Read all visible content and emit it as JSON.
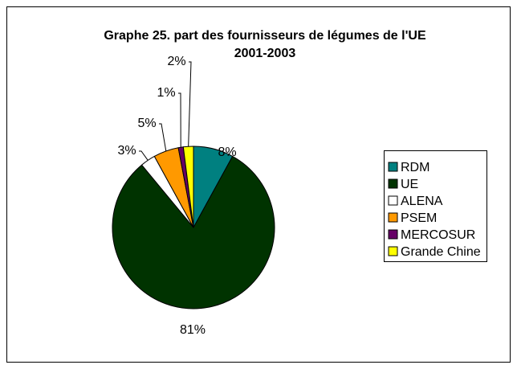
{
  "chart_data": {
    "type": "pie",
    "title": "Graphe 25. part des fournisseurs de légumes de l'UE 2001-2003",
    "categories": [
      "RDM",
      "UE",
      "ALENA",
      "PSEM",
      "MERCOSUR",
      "Grande Chine"
    ],
    "values": [
      8,
      81,
      3,
      5,
      1,
      2
    ],
    "value_labels": [
      "8%",
      "81%",
      "3%",
      "5%",
      "1%",
      "2%"
    ],
    "colors": [
      "#008080",
      "#003300",
      "#ffffff",
      "#ff9900",
      "#660066",
      "#ffff00"
    ],
    "legend": "right"
  }
}
